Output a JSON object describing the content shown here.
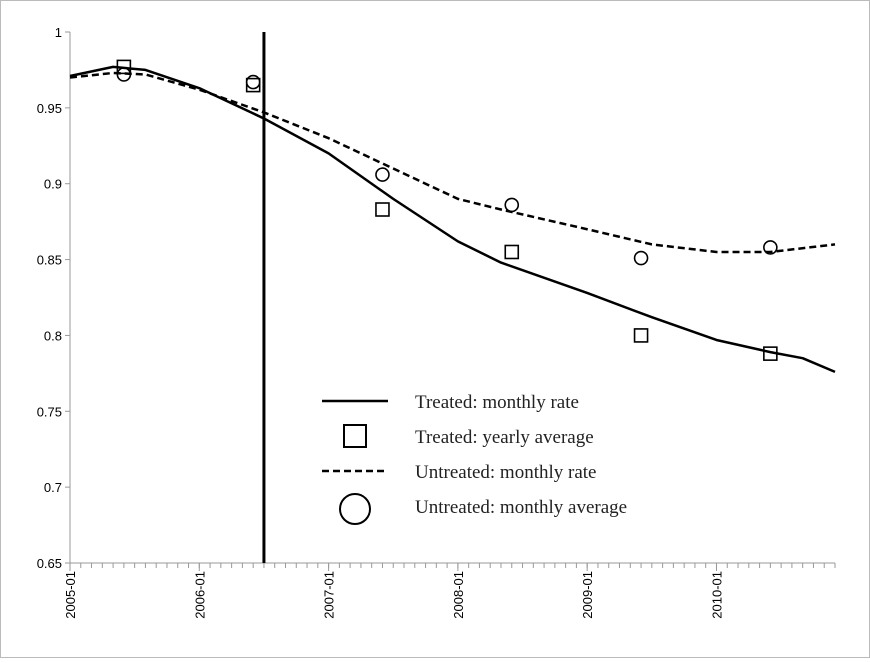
{
  "chart_data": {
    "type": "line",
    "xlim": [
      "2005-01",
      "2010-12"
    ],
    "xticks": [
      "2005-01",
      "2006-01",
      "2007-01",
      "2008-01",
      "2009-01",
      "2010-01"
    ],
    "ylim": [
      0.65,
      1
    ],
    "yticks": [
      0.65,
      0.7,
      0.75,
      0.8,
      0.85,
      0.9,
      0.95,
      1
    ],
    "vline": "2006-07",
    "series": [
      {
        "name": "Treated: monthly rate",
        "style": "solid",
        "color": "#000000",
        "x": [
          "2005-01",
          "2005-05",
          "2005-08",
          "2006-01",
          "2006-07",
          "2007-01",
          "2007-07",
          "2008-01",
          "2008-05",
          "2009-01",
          "2009-07",
          "2010-01",
          "2010-06",
          "2010-09",
          "2010-12"
        ],
        "values": [
          0.971,
          0.977,
          0.975,
          0.963,
          0.943,
          0.92,
          0.89,
          0.862,
          0.848,
          0.828,
          0.812,
          0.797,
          0.789,
          0.785,
          0.776
        ]
      },
      {
        "name": "Treated: yearly average",
        "style": "square",
        "color": "#000000",
        "x": [
          "2005-06",
          "2006-06",
          "2007-06",
          "2008-06",
          "2009-06",
          "2010-06"
        ],
        "values": [
          0.977,
          0.965,
          0.883,
          0.855,
          0.8,
          0.788
        ]
      },
      {
        "name": "Untreated: monthly rate",
        "style": "dashed",
        "color": "#000000",
        "x": [
          "2005-01",
          "2005-05",
          "2005-08",
          "2006-01",
          "2006-07",
          "2007-01",
          "2007-07",
          "2008-01",
          "2008-05",
          "2009-01",
          "2009-07",
          "2010-01",
          "2010-06",
          "2010-12"
        ],
        "values": [
          0.97,
          0.973,
          0.972,
          0.962,
          0.947,
          0.93,
          0.91,
          0.89,
          0.883,
          0.87,
          0.86,
          0.855,
          0.855,
          0.86
        ]
      },
      {
        "name": "Untreated: monthly average",
        "style": "circle",
        "color": "#000000",
        "x": [
          "2005-06",
          "2006-06",
          "2007-06",
          "2008-06",
          "2009-06",
          "2010-06"
        ],
        "values": [
          0.972,
          0.967,
          0.906,
          0.886,
          0.851,
          0.858
        ]
      }
    ]
  }
}
